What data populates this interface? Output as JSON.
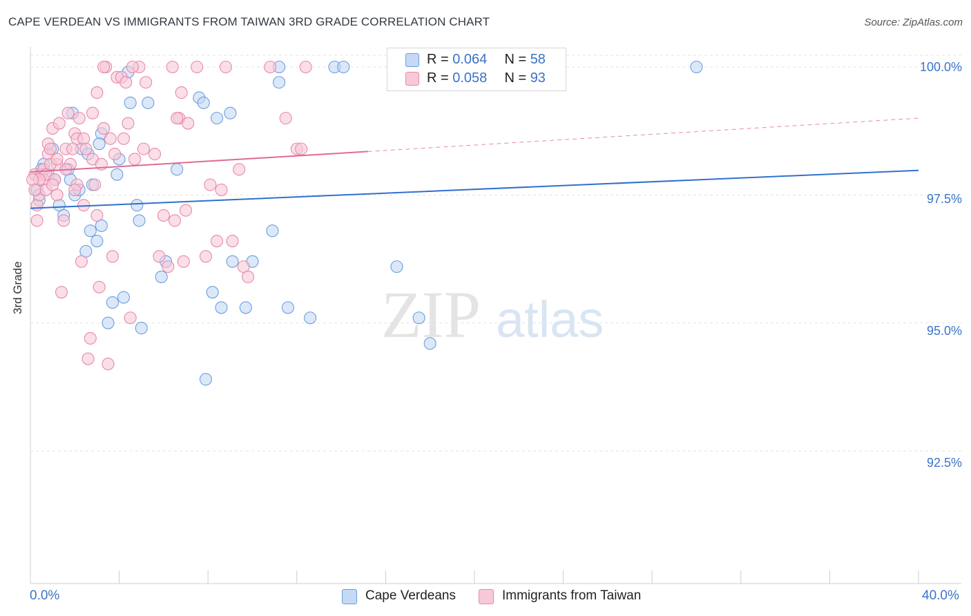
{
  "title": "CAPE VERDEAN VS IMMIGRANTS FROM TAIWAN 3RD GRADE CORRELATION CHART",
  "source": "Source: ZipAtlas.com",
  "watermark": {
    "zip": "ZIP",
    "atlas": "atlas"
  },
  "legend": {
    "r_label": "R =",
    "n_label": "N =",
    "series": [
      {
        "r": "0.064",
        "n": "58"
      },
      {
        "r": "0.058",
        "n": "93"
      }
    ]
  },
  "chart_data": {
    "type": "scatter",
    "title": "CAPE VERDEAN VS IMMIGRANTS FROM TAIWAN 3RD GRADE CORRELATION CHART",
    "xlabel": "",
    "ylabel": "3rd Grade",
    "xlim": [
      0,
      40
    ],
    "ylim": [
      90.0,
      100.5
    ],
    "x_tick_labels": [
      "0.0%",
      "40.0%"
    ],
    "y_ticks": [
      100.0,
      97.5,
      95.0,
      92.5
    ],
    "y_tick_labels": [
      "100.0%",
      "97.5%",
      "95.0%",
      "92.5%"
    ],
    "legend_position": "bottom-center",
    "series": [
      {
        "name": "Cape Verdeans",
        "color": "#6a9ee0",
        "fill": "#c5d9f4",
        "r": 0.064,
        "n": 58,
        "trend": {
          "x0": 0,
          "y0": 97.24,
          "x1": 40,
          "y1": 97.98,
          "solid_to": 40
        },
        "points": [
          [
            0.3,
            97.6
          ],
          [
            0.4,
            97.4
          ],
          [
            0.6,
            98.1
          ],
          [
            0.8,
            97.9
          ],
          [
            1.0,
            98.4
          ],
          [
            1.1,
            97.8
          ],
          [
            1.3,
            97.3
          ],
          [
            1.5,
            97.1
          ],
          [
            1.7,
            98.0
          ],
          [
            1.8,
            97.8
          ],
          [
            2.0,
            97.5
          ],
          [
            2.2,
            97.6
          ],
          [
            2.3,
            98.4
          ],
          [
            2.5,
            96.4
          ],
          [
            2.7,
            96.8
          ],
          [
            2.8,
            97.7
          ],
          [
            3.0,
            96.6
          ],
          [
            3.2,
            96.9
          ],
          [
            3.2,
            98.7
          ],
          [
            3.5,
            95.0
          ],
          [
            3.7,
            95.4
          ],
          [
            3.9,
            97.9
          ],
          [
            4.0,
            98.2
          ],
          [
            4.2,
            95.5
          ],
          [
            4.4,
            99.9
          ],
          [
            4.5,
            99.3
          ],
          [
            4.8,
            97.3
          ],
          [
            4.9,
            97.0
          ],
          [
            5.0,
            94.9
          ],
          [
            5.3,
            99.3
          ],
          [
            5.9,
            95.9
          ],
          [
            6.1,
            96.2
          ],
          [
            6.6,
            98.0
          ],
          [
            7.6,
            99.4
          ],
          [
            7.8,
            99.3
          ],
          [
            7.9,
            93.9
          ],
          [
            8.2,
            95.6
          ],
          [
            8.4,
            99.0
          ],
          [
            8.6,
            95.3
          ],
          [
            9.0,
            99.1
          ],
          [
            9.1,
            96.2
          ],
          [
            9.7,
            95.3
          ],
          [
            10.0,
            96.2
          ],
          [
            10.9,
            96.8
          ],
          [
            11.2,
            99.7
          ],
          [
            11.2,
            100.0
          ],
          [
            11.6,
            95.3
          ],
          [
            12.6,
            95.1
          ],
          [
            13.7,
            100.0
          ],
          [
            14.1,
            100.0
          ],
          [
            16.5,
            96.1
          ],
          [
            17.5,
            95.1
          ],
          [
            18.0,
            94.6
          ],
          [
            30.0,
            100.0
          ],
          [
            3.1,
            98.5
          ],
          [
            1.9,
            99.1
          ],
          [
            0.5,
            98.0
          ],
          [
            2.6,
            98.3
          ]
        ]
      },
      {
        "name": "Immigrants from Taiwan",
        "color": "#e68aa8",
        "fill": "#f7c8d8",
        "r": 0.058,
        "n": 93,
        "trend": {
          "x0": 0,
          "y0": 97.95,
          "x1": 40,
          "y1": 99.0,
          "solid_to": 15.2
        },
        "points": [
          [
            0.2,
            97.9
          ],
          [
            0.3,
            97.3
          ],
          [
            0.3,
            97.0
          ],
          [
            0.4,
            97.5
          ],
          [
            0.5,
            97.9
          ],
          [
            0.6,
            98.0
          ],
          [
            0.6,
            97.8
          ],
          [
            0.7,
            97.6
          ],
          [
            0.7,
            97.9
          ],
          [
            0.8,
            98.3
          ],
          [
            0.8,
            98.5
          ],
          [
            0.9,
            98.4
          ],
          [
            1.0,
            98.8
          ],
          [
            1.1,
            97.8
          ],
          [
            1.2,
            98.1
          ],
          [
            1.2,
            97.5
          ],
          [
            1.3,
            98.9
          ],
          [
            1.4,
            95.6
          ],
          [
            1.5,
            97.0
          ],
          [
            1.6,
            98.4
          ],
          [
            1.7,
            99.1
          ],
          [
            1.8,
            98.1
          ],
          [
            1.9,
            98.4
          ],
          [
            2.0,
            98.7
          ],
          [
            2.1,
            98.6
          ],
          [
            2.2,
            99.0
          ],
          [
            2.3,
            96.2
          ],
          [
            2.4,
            98.6
          ],
          [
            2.5,
            98.4
          ],
          [
            2.6,
            94.3
          ],
          [
            2.7,
            94.7
          ],
          [
            2.8,
            98.2
          ],
          [
            2.8,
            99.1
          ],
          [
            2.9,
            97.7
          ],
          [
            3.0,
            99.5
          ],
          [
            3.0,
            97.1
          ],
          [
            3.1,
            95.7
          ],
          [
            3.2,
            98.1
          ],
          [
            3.3,
            98.8
          ],
          [
            3.4,
            100.0
          ],
          [
            3.5,
            94.2
          ],
          [
            3.6,
            98.6
          ],
          [
            3.7,
            96.3
          ],
          [
            3.8,
            98.3
          ],
          [
            3.9,
            99.8
          ],
          [
            4.1,
            99.8
          ],
          [
            4.2,
            98.6
          ],
          [
            4.3,
            99.7
          ],
          [
            4.4,
            98.9
          ],
          [
            4.5,
            95.1
          ],
          [
            4.7,
            98.2
          ],
          [
            4.9,
            100.0
          ],
          [
            5.1,
            98.4
          ],
          [
            5.2,
            99.7
          ],
          [
            5.6,
            98.3
          ],
          [
            6.0,
            97.1
          ],
          [
            6.2,
            96.1
          ],
          [
            6.4,
            100.0
          ],
          [
            6.5,
            97.0
          ],
          [
            6.7,
            99.0
          ],
          [
            6.8,
            99.5
          ],
          [
            6.9,
            96.2
          ],
          [
            7.0,
            97.2
          ],
          [
            7.1,
            98.9
          ],
          [
            7.5,
            100.0
          ],
          [
            7.9,
            96.3
          ],
          [
            8.1,
            97.7
          ],
          [
            8.4,
            96.6
          ],
          [
            8.6,
            97.6
          ],
          [
            8.8,
            100.0
          ],
          [
            9.1,
            96.6
          ],
          [
            9.4,
            98.0
          ],
          [
            9.6,
            96.1
          ],
          [
            9.8,
            95.9
          ],
          [
            10.8,
            100.0
          ],
          [
            11.5,
            99.0
          ],
          [
            12.0,
            98.4
          ],
          [
            12.2,
            98.4
          ],
          [
            3.3,
            100.0
          ],
          [
            1.6,
            98.0
          ],
          [
            2.1,
            97.7
          ],
          [
            0.9,
            98.1
          ],
          [
            1.0,
            97.7
          ],
          [
            0.4,
            97.8
          ],
          [
            2.4,
            97.3
          ],
          [
            2.0,
            97.6
          ],
          [
            1.2,
            98.2
          ],
          [
            6.6,
            99.0
          ],
          [
            0.1,
            97.8
          ],
          [
            0.2,
            97.6
          ],
          [
            12.4,
            100.0
          ],
          [
            4.6,
            100.0
          ],
          [
            5.8,
            96.3
          ]
        ]
      }
    ]
  },
  "bottom_legend": [
    "Cape Verdeans",
    "Immigrants from Taiwan"
  ]
}
